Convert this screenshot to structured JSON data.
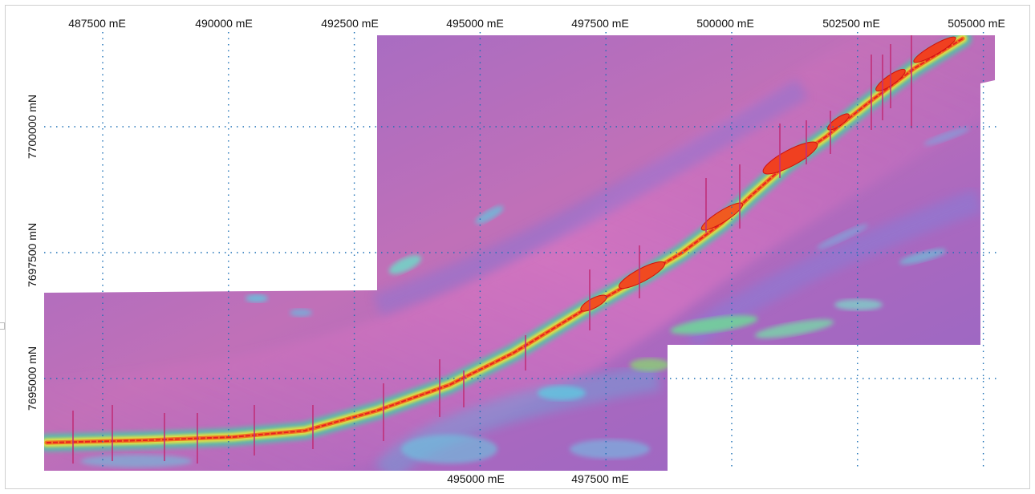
{
  "map": {
    "easting_labels_top": [
      "487500 mE",
      "490000 mE",
      "492500 mE",
      "495000 mE",
      "497500 mE",
      "500000 mE",
      "502500 mE",
      "505000 mE"
    ],
    "easting_values_top": [
      487500,
      490000,
      492500,
      495000,
      497500,
      500000,
      502500,
      505000
    ],
    "easting_labels_bottom": [
      "495000 mE",
      "497500 mE"
    ],
    "easting_values_bottom": [
      495000,
      497500
    ],
    "northing_labels": [
      "7700000 mN",
      "7697500 mN",
      "7695000 mN"
    ],
    "northing_values": [
      7700000,
      7697500,
      7695000
    ],
    "colors": {
      "background_magenta": "#b070c0",
      "high_ridge_red": "#e82020",
      "mid_yellow": "#f0e040",
      "low_green": "#70d080",
      "trough_cyan": "#60c8e0",
      "grid_dots": "#1a6fb5",
      "no_data": "#ffffff"
    },
    "grid": "dotted"
  }
}
